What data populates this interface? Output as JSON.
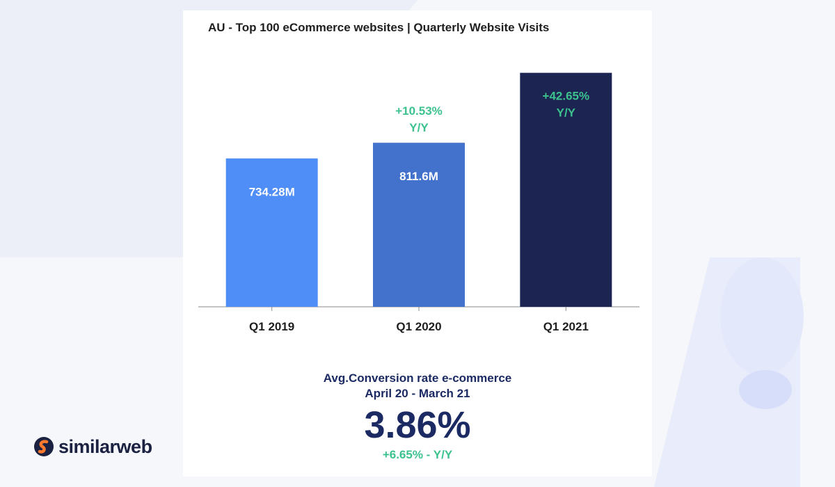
{
  "chart_data": {
    "type": "bar",
    "title": "AU - Top 100 eCommerce websites | Quarterly Website Visits",
    "categories": [
      "Q1 2019",
      "Q1 2020",
      "Q1 2021"
    ],
    "values": [
      734.28,
      811.6,
      1157.75
    ],
    "value_labels": [
      "734.28M",
      "811.6M",
      ""
    ],
    "yoy_labels": [
      {
        "line1": "",
        "line2": ""
      },
      {
        "line1": "+10.53%",
        "line2": "Y/Y"
      },
      {
        "line1": "+42.65%",
        "line2": "Y/Y"
      }
    ],
    "bar_colors": [
      "#4f8df7",
      "#4372cc",
      "#1c2551"
    ],
    "ylim": [
      0,
      1160
    ],
    "grid": false
  },
  "stats": {
    "label_line1": "Avg.Conversion rate e-commerce",
    "label_line2": "April 20 - March 21",
    "value": "3.86%",
    "change": "+6.65% - Y/Y"
  },
  "brand": {
    "name": "similarweb",
    "logo_icon": "similarweb-logo-icon"
  },
  "colors": {
    "positive": "#3cc28e",
    "navy": "#1b2a63"
  }
}
